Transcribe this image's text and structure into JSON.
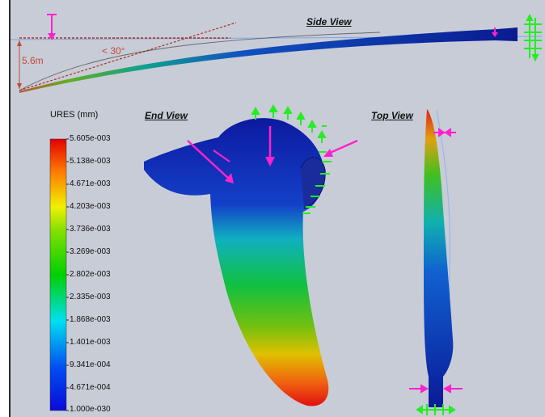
{
  "views": {
    "side": "Side View",
    "end": "End View",
    "top": "Top View"
  },
  "dimensions": {
    "height": "5.6m",
    "angle": "< 30°"
  },
  "legend": {
    "title": "URES (mm)",
    "ticks": [
      "5.605e-003",
      "5.138e-003",
      "4.671e-003",
      "4.203e-003",
      "3.736e-003",
      "3.269e-003",
      "2.802e-003",
      "2.335e-003",
      "1.868e-003",
      "1.401e-003",
      "9.341e-004",
      "4.671e-004",
      "1.000e-030"
    ]
  },
  "colors": {
    "background": "#c8ccd7",
    "load_arrow": "#ff22cc",
    "fixture": "#22ee22",
    "dimension": "#c04a3a",
    "scale_max": "#e8161a",
    "scale_min": "#1218d8"
  }
}
